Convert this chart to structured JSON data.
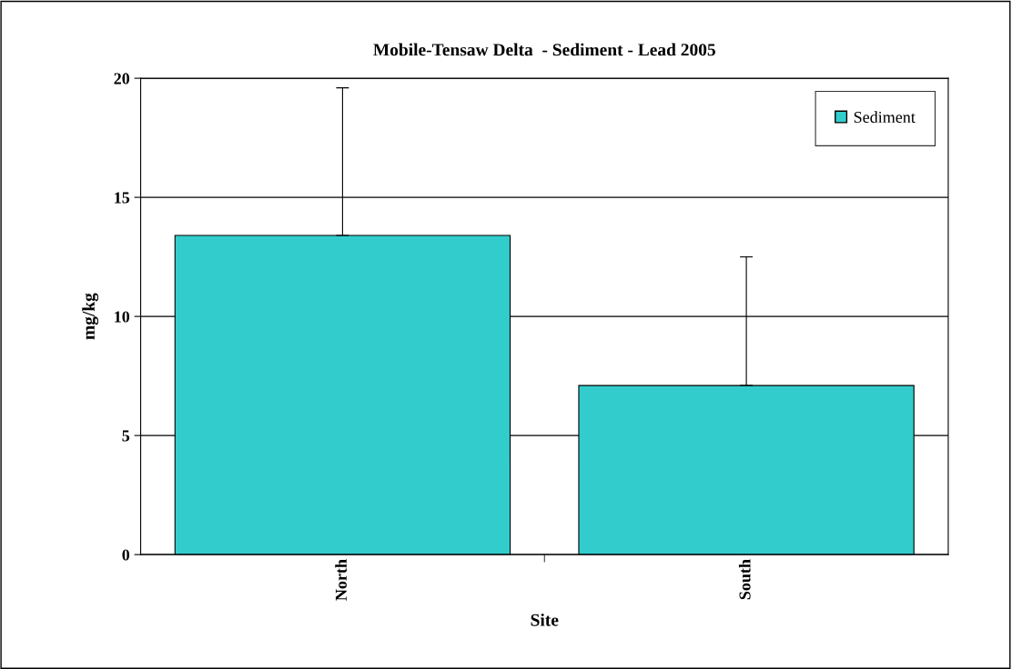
{
  "chart_data": {
    "type": "bar",
    "title": "Mobile-Tensaw Delta  - Sediment - Lead 2005",
    "xlabel": "Site",
    "ylabel": "mg/kg",
    "categories": [
      "North",
      "South"
    ],
    "series": [
      {
        "name": "Sediment",
        "color": "#33cccc",
        "values": [
          13.4,
          7.1
        ],
        "errors": [
          [
            13.4,
            19.6
          ],
          [
            7.1,
            12.5
          ]
        ]
      }
    ],
    "ylim": [
      0,
      20
    ],
    "yticks": [
      0,
      5,
      10,
      15,
      20
    ],
    "grid": "y",
    "legend": "top right"
  }
}
